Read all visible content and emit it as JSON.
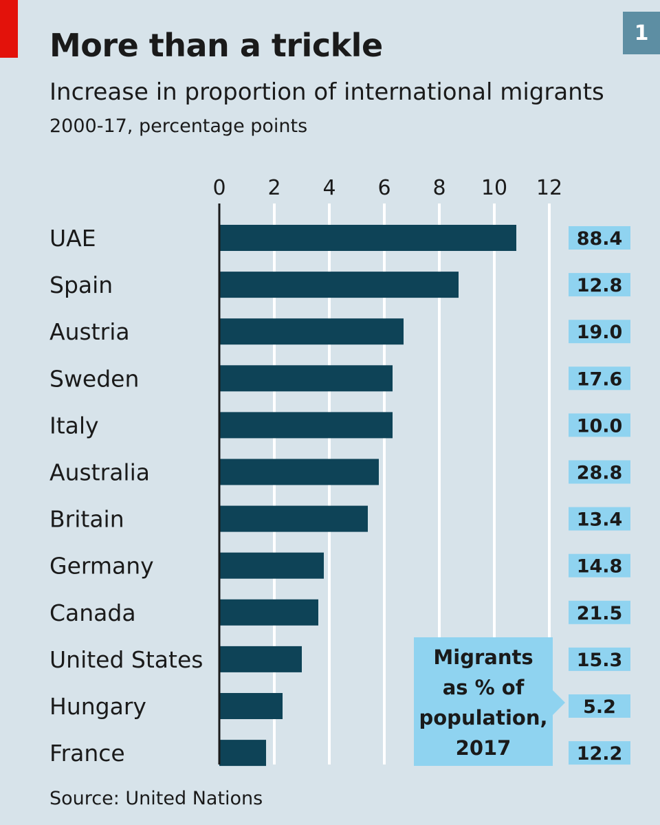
{
  "header": {
    "chart_number": "1"
  },
  "chart_data": {
    "type": "bar",
    "orientation": "horizontal",
    "title": "More than a trickle",
    "subtitle": "Increase in proportion of international migrants",
    "units_note": "2000-17, percentage points",
    "source": "Source: United Nations",
    "xlim": [
      0,
      12
    ],
    "x_ticks": [
      "0",
      "2",
      "4",
      "6",
      "8",
      "10",
      "12"
    ],
    "categories": [
      "UAE",
      "Spain",
      "Austria",
      "Sweden",
      "Italy",
      "Australia",
      "Britain",
      "Germany",
      "Canada",
      "United States",
      "Hungary",
      "France"
    ],
    "values": [
      10.8,
      8.7,
      6.7,
      6.3,
      6.3,
      5.8,
      5.4,
      3.8,
      3.6,
      3.0,
      2.3,
      1.7
    ],
    "secondary_series": {
      "name": "Migrants as % of population, 2017",
      "labels": [
        "88.4",
        "12.8",
        "19.0",
        "17.6",
        "10.0",
        "28.8",
        "13.4",
        "14.8",
        "21.5",
        "15.3",
        "5.2",
        "12.2"
      ],
      "label_lines": [
        "Migrants",
        "as % of",
        "population,",
        "2017"
      ]
    },
    "colors": {
      "bar": "#0e4357",
      "gridline": "#ffffff",
      "value_box": "#8fd3f0",
      "callout": "#8fd3f0",
      "axis": "#1a1a1a"
    }
  }
}
